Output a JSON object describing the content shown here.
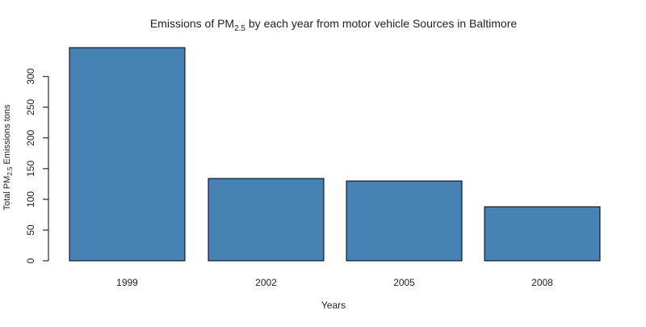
{
  "chart_data": {
    "type": "bar",
    "title": {
      "prefix": "Emissions of  PM",
      "subscript": "2.5",
      "suffix": " by each year from motor vehicle Sources in Baltimore"
    },
    "xlabel": "Years",
    "ylabel": {
      "prefix": "Total PM",
      "subscript": "2.5",
      "suffix": " Emissions tons"
    },
    "categories": [
      "1999",
      "2002",
      "2005",
      "2008"
    ],
    "values": [
      347,
      134,
      130,
      88
    ],
    "ylim": [
      0,
      347
    ],
    "yticks": [
      0,
      50,
      100,
      150,
      200,
      250,
      300
    ],
    "grid": false,
    "colors": {
      "bar_fill": "#4682B4",
      "bar_stroke": "#000000",
      "axis": "#000000",
      "text": "#222222"
    }
  }
}
